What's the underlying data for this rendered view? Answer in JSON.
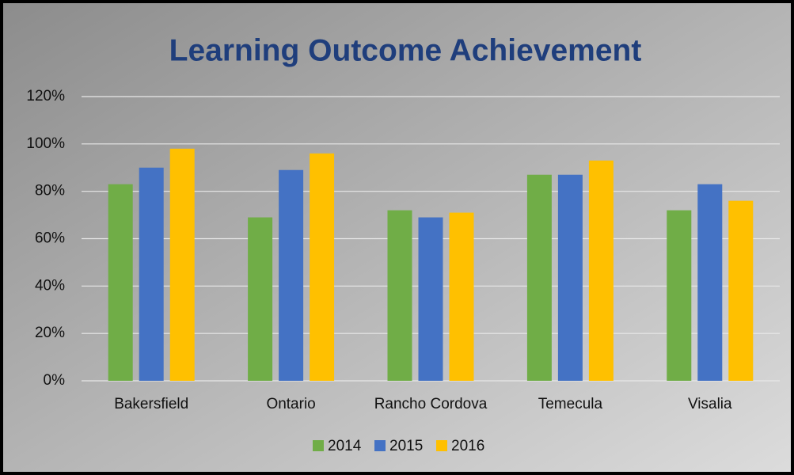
{
  "chart_data": {
    "type": "bar",
    "title": "Learning Outcome Achievement",
    "categories": [
      "Bakersfield",
      "Ontario",
      "Rancho Cordova",
      "Temecula",
      "Visalia"
    ],
    "series": [
      {
        "name": "2014",
        "color": "#70ad47",
        "values": [
          83,
          69,
          72,
          87,
          72
        ]
      },
      {
        "name": "2015",
        "color": "#4472c4",
        "values": [
          90,
          89,
          69,
          87,
          83
        ]
      },
      {
        "name": "2016",
        "color": "#ffc000",
        "values": [
          98,
          96,
          71,
          93,
          76
        ]
      }
    ],
    "ylim": [
      0,
      120
    ],
    "yticks": [
      {
        "value": 0,
        "label": "0%"
      },
      {
        "value": 20,
        "label": "20%"
      },
      {
        "value": 40,
        "label": "40%"
      },
      {
        "value": 60,
        "label": "60%"
      },
      {
        "value": 80,
        "label": "80%"
      },
      {
        "value": 100,
        "label": "100%"
      },
      {
        "value": 120,
        "label": "120%"
      }
    ],
    "grid": true,
    "legend": "bottom"
  }
}
